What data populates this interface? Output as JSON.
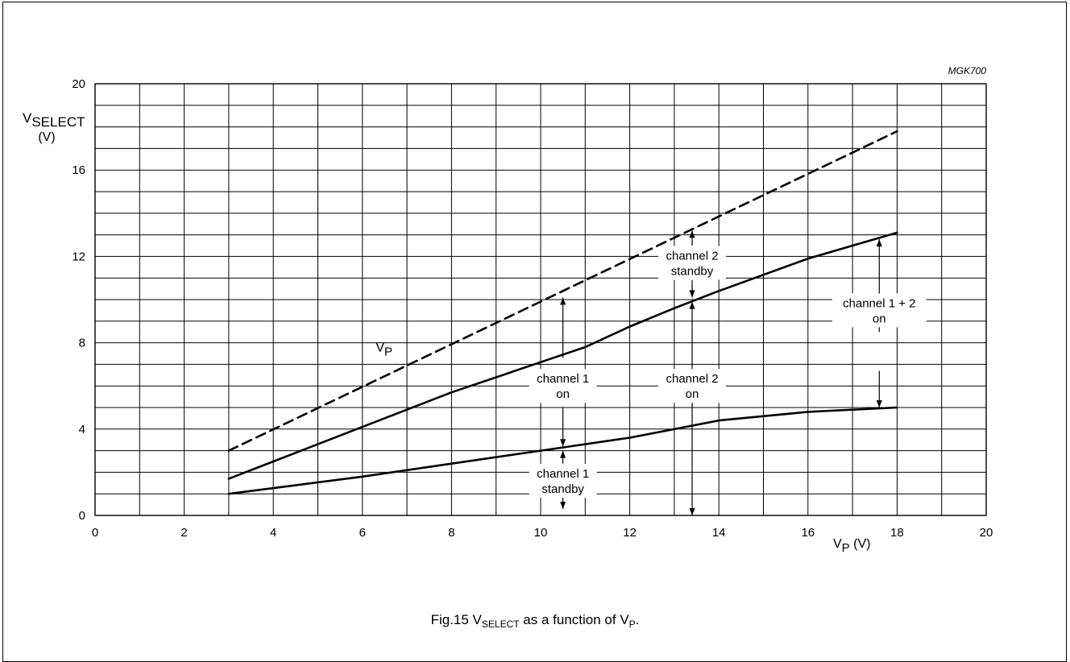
{
  "chart_data": {
    "type": "line",
    "code": "MGK700",
    "xlabel": {
      "main": "V",
      "sub": "P",
      "unit": " (V)"
    },
    "ylabel": {
      "main": "V",
      "sub": "SELECT",
      "unit": "(V)"
    },
    "xlim": [
      0,
      20
    ],
    "ylim": [
      0,
      20
    ],
    "x_ticks": [
      "0",
      "2",
      "4",
      "6",
      "8",
      "10",
      "12",
      "14",
      "16",
      "18",
      "20"
    ],
    "y_ticks": [
      "0",
      "4",
      "8",
      "12",
      "16",
      "20"
    ],
    "grid": true,
    "series": [
      {
        "name": "V",
        "name_sub": "P",
        "style": "dashed",
        "x": [
          3,
          18
        ],
        "y": [
          3,
          17.8
        ]
      },
      {
        "name": "",
        "style": "solid",
        "x": [
          3,
          4,
          6,
          8,
          10,
          11,
          12,
          13,
          14,
          16,
          18
        ],
        "y": [
          1.7,
          2.5,
          4.1,
          5.7,
          7.1,
          7.8,
          8.75,
          9.6,
          10.4,
          11.9,
          13.1
        ]
      },
      {
        "name": "",
        "style": "solid",
        "x": [
          3,
          6,
          8,
          10,
          12,
          14,
          16,
          18
        ],
        "y": [
          1.0,
          1.8,
          2.4,
          3.0,
          3.6,
          4.4,
          4.8,
          5.0
        ]
      }
    ],
    "arrows": [
      {
        "x": 10.5,
        "y_from": 7.3,
        "y_to": 10.1
      },
      {
        "x": 10.5,
        "y_from": 5.0,
        "y_to": 3.2
      },
      {
        "x": 10.5,
        "y_from": 2.4,
        "y_to": 3.0
      },
      {
        "x": 10.5,
        "y_from": 1.2,
        "y_to": 0.3
      },
      {
        "x": 13.4,
        "y_from": 12.5,
        "y_to": 13.2
      },
      {
        "x": 13.4,
        "y_from": 10.9,
        "y_to": 10.1
      },
      {
        "x": 13.4,
        "y_from": 5.1,
        "y_to": 9.9
      },
      {
        "x": 13.4,
        "y_from": 5.1,
        "y_to": 0.0
      },
      {
        "x": 17.6,
        "y_from": 8.5,
        "y_to": 12.8
      },
      {
        "x": 17.6,
        "y_from": 6.7,
        "y_to": 5.0
      }
    ],
    "annotations": [
      {
        "lines": [
          "channel 2",
          "standby"
        ],
        "x": 13.4,
        "y": 11.7
      },
      {
        "lines": [
          "channel 1 + 2",
          "on"
        ],
        "x": 17.6,
        "y": 9.5
      },
      {
        "lines": [
          "channel 1",
          "on"
        ],
        "x": 10.5,
        "y": 6.0
      },
      {
        "lines": [
          "channel 2",
          "on"
        ],
        "x": 13.4,
        "y": 6.0
      },
      {
        "lines": [
          "channel 1",
          "standby"
        ],
        "x": 10.5,
        "y": 1.6
      }
    ]
  },
  "caption": {
    "prefix": "Fig.15  V",
    "sub1": "SELECT",
    "middle": " as a function of V",
    "sub2": "P",
    "end": "."
  }
}
